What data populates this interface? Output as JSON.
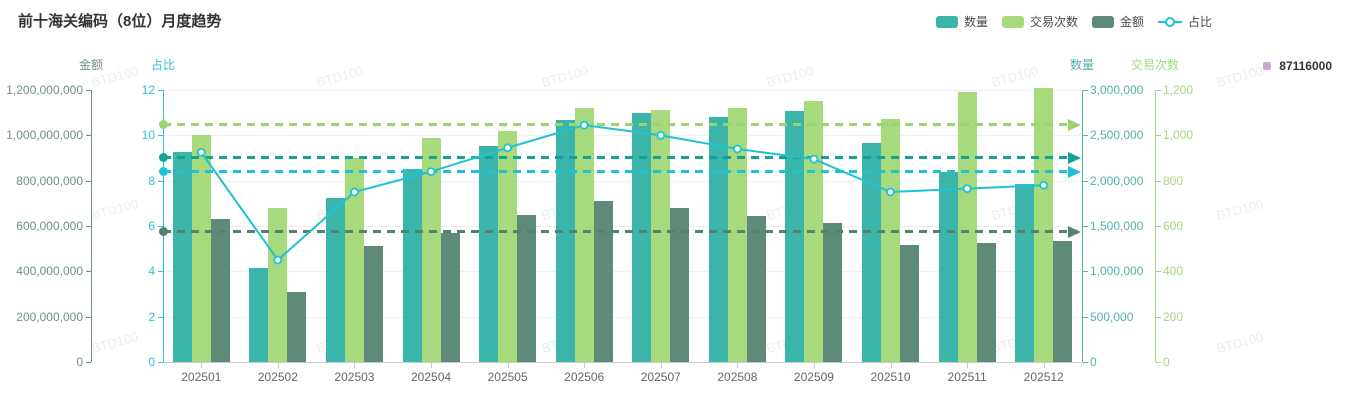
{
  "title": "前十海关编码（8位）月度趋势",
  "watermark": "BTD100",
  "legend": [
    {
      "key": "quantity",
      "label": "数量",
      "type": "bar",
      "color": "#3bb5a9"
    },
    {
      "key": "transactions",
      "label": "交易次数",
      "type": "bar",
      "color": "#a7da7d"
    },
    {
      "key": "amount",
      "label": "金额",
      "type": "bar",
      "color": "#5d8b78"
    },
    {
      "key": "ratio",
      "label": "占比",
      "type": "line",
      "color": "#1fc2d5"
    }
  ],
  "secondary_legend": {
    "label": "87116000",
    "color": "#d0a6d8"
  },
  "chart_data": {
    "type": "bar+line",
    "categories": [
      "202501",
      "202502",
      "202503",
      "202504",
      "202505",
      "202506",
      "202507",
      "202508",
      "202509",
      "202510",
      "202511",
      "202512"
    ],
    "series": [
      {
        "name": "数量",
        "key": "quantity",
        "type": "bar",
        "axis": "quantity",
        "color": "#3bb5a9",
        "values": [
          2320000,
          1040000,
          1810000,
          2130000,
          2380000,
          2670000,
          2750000,
          2700000,
          2770000,
          2410000,
          2100000,
          1960000
        ],
        "average": 2253333,
        "average_color": "#12a296"
      },
      {
        "name": "交易次数",
        "key": "transactions",
        "type": "bar",
        "axis": "transactions",
        "color": "#a7da7d",
        "values": [
          1000,
          680,
          900,
          990,
          1020,
          1120,
          1110,
          1120,
          1150,
          1070,
          1190,
          1210
        ],
        "average": 1047,
        "average_color": "#97d56d"
      },
      {
        "name": "金额",
        "key": "amount",
        "type": "bar",
        "axis": "amount",
        "color": "#5d8b78",
        "values": [
          631000000,
          307000000,
          513000000,
          570000000,
          649000000,
          712000000,
          681000000,
          644000000,
          612000000,
          515000000,
          527000000,
          535000000
        ],
        "average": 574600000,
        "average_color": "#54826f"
      },
      {
        "name": "占比",
        "key": "ratio",
        "type": "line",
        "axis": "ratio",
        "color": "#1fc2d5",
        "values": [
          9.25,
          4.5,
          7.5,
          8.4,
          9.45,
          10.45,
          10.0,
          9.4,
          8.95,
          7.5,
          7.65,
          7.8
        ],
        "average": 8.4,
        "average_color": "#1fc2d5"
      }
    ],
    "axes": {
      "amount": {
        "name": "金额",
        "side": "left",
        "min": 0,
        "max": 1200000000,
        "color": "#6f9184",
        "ticks": [
          "1,200,000,000",
          "1,000,000,000",
          "800,000,000",
          "600,000,000",
          "400,000,000",
          "200,000,000",
          "0"
        ]
      },
      "ratio": {
        "name": "占比",
        "side": "left",
        "min": 0,
        "max": 12,
        "color": "#2bc3d4",
        "ticks": [
          "12",
          "10",
          "8",
          "6",
          "4",
          "2",
          "0"
        ]
      },
      "quantity": {
        "name": "数量",
        "side": "right",
        "min": 0,
        "max": 3000000,
        "color": "#52b3a7",
        "ticks": [
          "3,000,000",
          "2,500,000",
          "2,000,000",
          "1,500,000",
          "1,000,000",
          "500,000",
          "0"
        ]
      },
      "transactions": {
        "name": "交易次数",
        "side": "right",
        "min": 0,
        "max": 1200,
        "color": "#a4d780",
        "ticks": [
          "1,200",
          "1,000",
          "800",
          "600",
          "400",
          "200",
          "0"
        ]
      }
    },
    "grid": true,
    "legend_position": "top-right"
  }
}
